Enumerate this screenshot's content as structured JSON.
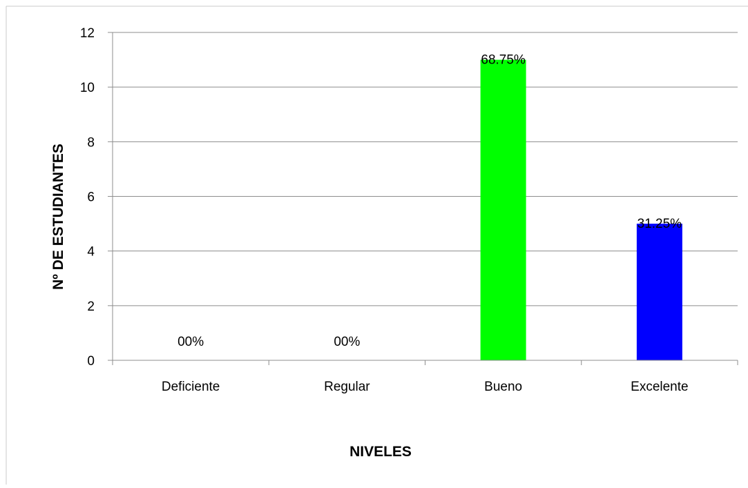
{
  "chart_data": {
    "type": "bar",
    "categories": [
      "Deficiente",
      "Regular",
      "Bueno",
      "Excelente"
    ],
    "values": [
      0,
      0,
      11,
      5
    ],
    "data_labels": [
      "00%",
      "00%",
      "68.75%",
      "31.25%"
    ],
    "colors": [
      "#00ff00",
      "#00ff00",
      "#00ff00",
      "#0000ff"
    ],
    "xlabel": "NIVELES",
    "ylabel": "Nº DE ESTUDIANTES",
    "ylim": [
      0,
      12
    ],
    "yticks": [
      0,
      2,
      4,
      6,
      8,
      10,
      12
    ],
    "grid": true,
    "legend": "none"
  }
}
